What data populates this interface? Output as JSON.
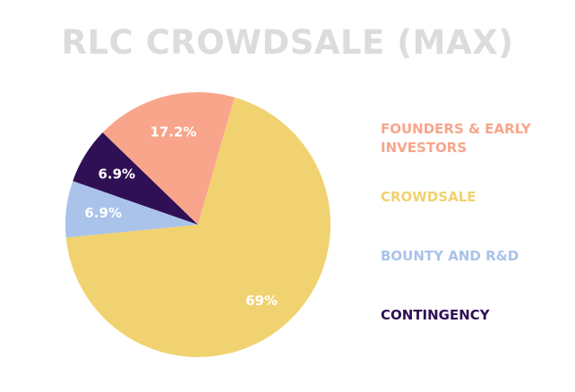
{
  "chart_data": {
    "type": "pie",
    "title": "RLC CROWDSALE (MAX)",
    "slices": [
      {
        "label": "CROWDSALE",
        "value": 69,
        "display": "69%",
        "color": "#f1d270",
        "label_color": "#ffffff"
      },
      {
        "label": "BOUNTY AND R&D",
        "value": 6.9,
        "display": "6.9%",
        "color": "#a9c3ea",
        "label_color": "#ffffff"
      },
      {
        "label": "CONTINGENCY",
        "value": 6.9,
        "display": "6.9%",
        "color": "#2f1055",
        "label_color": "#ffffff"
      },
      {
        "label": "FOUNDERS & EARLY INVESTORS",
        "value": 17.2,
        "display": "17.2%",
        "color": "#f8a58b",
        "label_color": "#ffffff"
      }
    ],
    "legend": {
      "placement": "right",
      "entries": [
        {
          "label": "FOUNDERS & EARLY INVESTORS",
          "color": "#f8a58b"
        },
        {
          "label": "CROWDSALE",
          "color": "#f1d270"
        },
        {
          "label": "BOUNTY AND R&D",
          "color": "#a9c3ea"
        },
        {
          "label": "CONTINGENCY",
          "color": "#2f1055"
        }
      ]
    }
  }
}
